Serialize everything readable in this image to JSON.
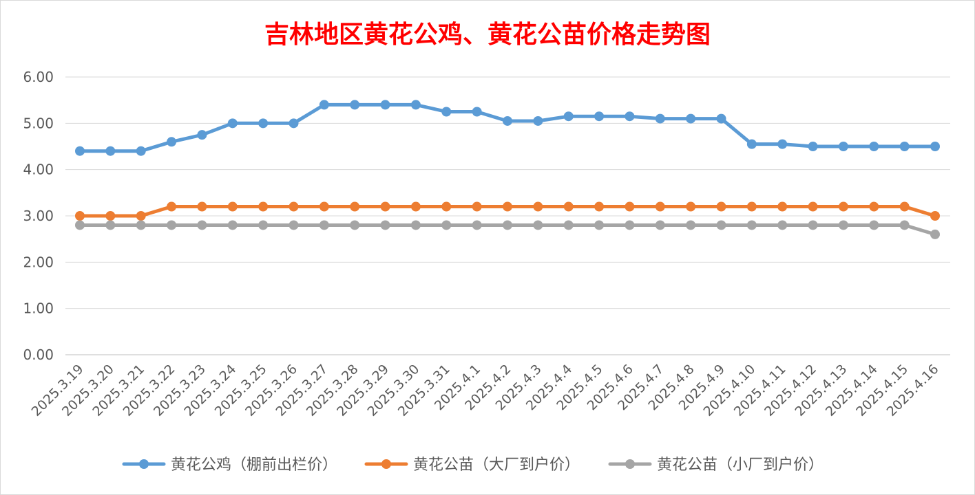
{
  "chart_data": {
    "type": "line",
    "title": "吉林地区黄花公鸡、黄花公苗价格走势图",
    "title_color": "#ff0000",
    "categories": [
      "2025.3.19",
      "2025.3.20",
      "2025.3.21",
      "2025.3.22",
      "2025.3.23",
      "2025.3.24",
      "2025.3.25",
      "2025.3.26",
      "2025.3.27",
      "2025.3.28",
      "2025.3.29",
      "2025.3.30",
      "2025.3.31",
      "2025.4.1",
      "2025.4.2",
      "2025.4.3",
      "2025.4.4",
      "2025.4.5",
      "2025.4.6",
      "2025.4.7",
      "2025.4.8",
      "2025.4.9",
      "2025.4.10",
      "2025.4.11",
      "2025.4.12",
      "2025.4.13",
      "2025.4.14",
      "2025.4.15",
      "2025.4.16"
    ],
    "ylim": [
      0,
      6
    ],
    "yticks": [
      "0.00",
      "1.00",
      "2.00",
      "3.00",
      "4.00",
      "5.00",
      "6.00"
    ],
    "grid": true,
    "legend_position": "bottom",
    "series": [
      {
        "name": "黄花公鸡（棚前出栏价）",
        "color": "#5b9bd5",
        "values": [
          4.4,
          4.4,
          4.4,
          4.6,
          4.75,
          5.0,
          5.0,
          5.0,
          5.4,
          5.4,
          5.4,
          5.4,
          5.25,
          5.25,
          5.05,
          5.05,
          5.15,
          5.15,
          5.15,
          5.1,
          5.1,
          5.1,
          4.55,
          4.55,
          4.5,
          4.5,
          4.5,
          4.5,
          4.5
        ]
      },
      {
        "name": "黄花公苗（大厂到户价）",
        "color": "#ed7d31",
        "values": [
          3.0,
          3.0,
          3.0,
          3.2,
          3.2,
          3.2,
          3.2,
          3.2,
          3.2,
          3.2,
          3.2,
          3.2,
          3.2,
          3.2,
          3.2,
          3.2,
          3.2,
          3.2,
          3.2,
          3.2,
          3.2,
          3.2,
          3.2,
          3.2,
          3.2,
          3.2,
          3.2,
          3.2,
          3.0
        ]
      },
      {
        "name": "黄花公苗（小厂到户价）",
        "color": "#a5a5a5",
        "values": [
          2.8,
          2.8,
          2.8,
          2.8,
          2.8,
          2.8,
          2.8,
          2.8,
          2.8,
          2.8,
          2.8,
          2.8,
          2.8,
          2.8,
          2.8,
          2.8,
          2.8,
          2.8,
          2.8,
          2.8,
          2.8,
          2.8,
          2.8,
          2.8,
          2.8,
          2.8,
          2.8,
          2.8,
          2.6
        ]
      }
    ]
  }
}
